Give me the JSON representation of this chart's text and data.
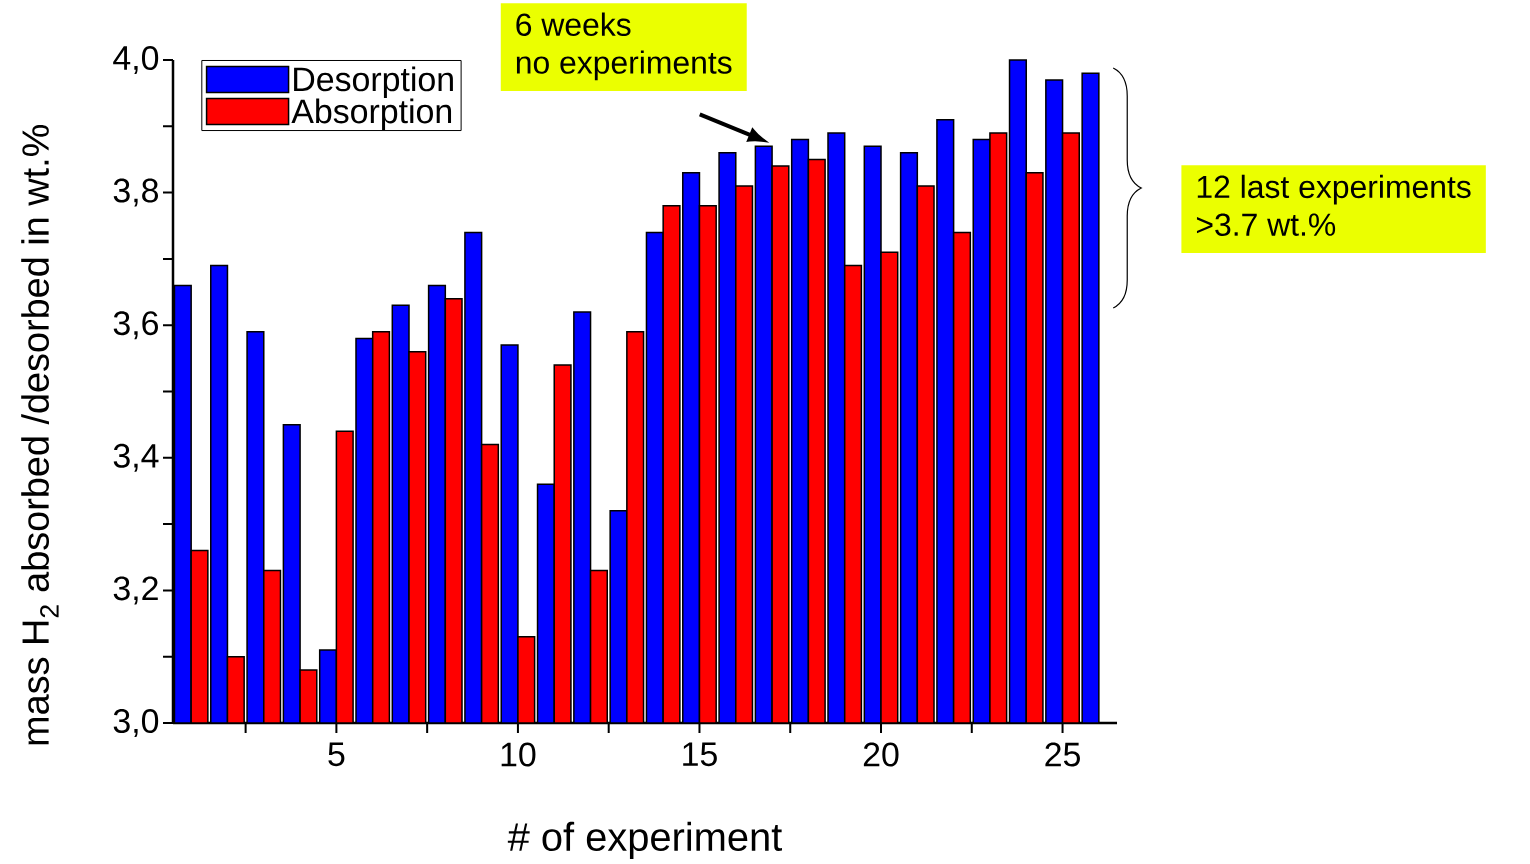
{
  "chart_data": {
    "type": "bar",
    "xlabel": "# of experiment",
    "ylabel": "mass H$_{2}$ absorbed /desorbed in wt.%",
    "x": [
      1,
      2,
      3,
      4,
      5,
      6,
      7,
      8,
      9,
      10,
      11,
      12,
      13,
      14,
      15,
      16,
      17,
      18,
      19,
      20,
      21,
      22,
      23,
      24,
      25,
      26
    ],
    "series": [
      {
        "name": "Desorption",
        "color": "#0000ff",
        "values": [
          3.66,
          3.69,
          3.59,
          3.45,
          3.11,
          3.58,
          3.63,
          3.66,
          3.74,
          3.57,
          3.36,
          3.62,
          3.32,
          3.74,
          3.83,
          3.86,
          3.87,
          3.88,
          3.89,
          3.87,
          3.86,
          3.91,
          3.88,
          4.0,
          3.97,
          3.98
        ]
      },
      {
        "name": "Absorption",
        "color": "#ff0000",
        "values": [
          3.26,
          3.1,
          3.23,
          3.08,
          3.44,
          3.59,
          3.56,
          3.64,
          3.42,
          3.13,
          3.54,
          3.23,
          3.59,
          3.78,
          3.78,
          3.81,
          3.84,
          3.85,
          3.69,
          3.71,
          3.81,
          3.74,
          3.89,
          3.83,
          3.89,
          null
        ]
      }
    ],
    "xlim": [
      0.5,
      26.5
    ],
    "ylim": [
      3.0,
      4.0
    ],
    "xticks": [
      {
        "value": 2.5,
        "label": null
      },
      5,
      {
        "value": 7.5,
        "label": null
      },
      10,
      {
        "value": 12.5,
        "label": null
      },
      15,
      {
        "value": 17.5,
        "label": null
      },
      20,
      {
        "value": 22.5,
        "label": null
      },
      25
    ],
    "yticks": [
      {
        "value": 3.0,
        "label": "3,0"
      },
      {
        "value": 3.1,
        "label": null
      },
      {
        "value": 3.2,
        "label": "3,2"
      },
      {
        "value": 3.3,
        "label": null
      },
      {
        "value": 3.4,
        "label": "3,4"
      },
      {
        "value": 3.5,
        "label": null
      },
      {
        "value": 3.6,
        "label": "3,6"
      },
      {
        "value": 3.7,
        "label": null
      },
      {
        "value": 3.8,
        "label": "3,8"
      },
      {
        "value": 3.9,
        "label": null
      },
      {
        "value": 4.0,
        "label": "4,0"
      }
    ],
    "legend": "top left",
    "annotations": [
      "6 weeks",
      "no experiments",
      "12 last experiments",
      ">3.7 wt.%"
    ]
  }
}
